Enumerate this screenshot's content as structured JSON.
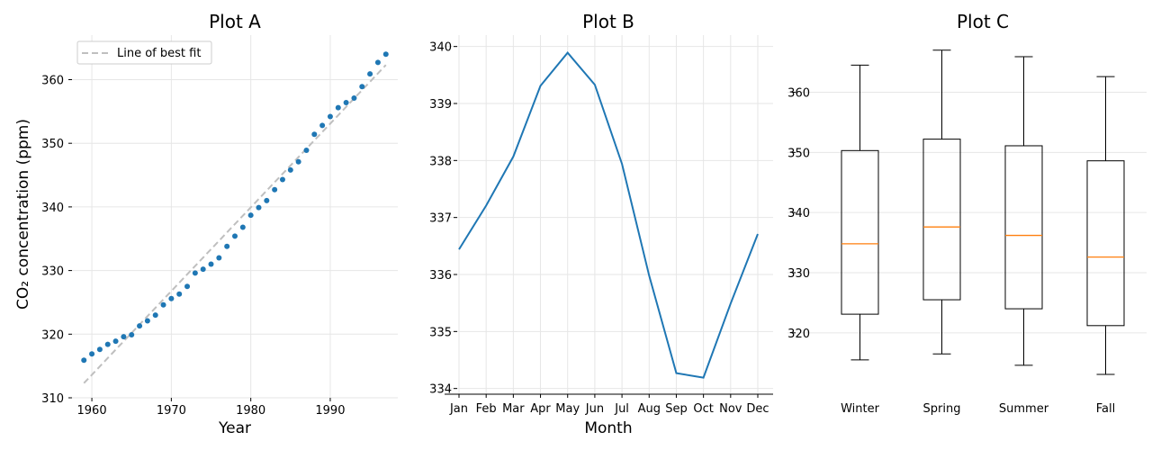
{
  "chart_data": [
    {
      "type": "scatter",
      "title": "Plot A",
      "xlabel": "Year",
      "ylabel": "CO₂ concentration (ppm)",
      "xlim": [
        1957.5,
        1998.5
      ],
      "ylim": [
        310,
        367
      ],
      "xticks": [
        1960,
        1970,
        1980,
        1990
      ],
      "yticks": [
        310,
        320,
        330,
        340,
        350,
        360
      ],
      "grid": true,
      "legend": {
        "position": "top-left",
        "entries": [
          "Line of best fit"
        ]
      },
      "colors": {
        "points": "#1f77b4",
        "fit": "#bfbfbf"
      },
      "x": [
        1959,
        1960,
        1961,
        1962,
        1963,
        1964,
        1965,
        1966,
        1967,
        1968,
        1969,
        1970,
        1971,
        1972,
        1973,
        1974,
        1975,
        1976,
        1977,
        1978,
        1979,
        1980,
        1981,
        1982,
        1983,
        1984,
        1985,
        1986,
        1987,
        1988,
        1989,
        1990,
        1991,
        1992,
        1993,
        1994,
        1995,
        1996,
        1997
      ],
      "y": [
        315.9,
        316.9,
        317.6,
        318.4,
        318.9,
        319.6,
        319.9,
        321.3,
        322.1,
        323.0,
        324.6,
        325.6,
        326.3,
        327.5,
        329.6,
        330.2,
        331.0,
        332.0,
        333.8,
        335.4,
        336.8,
        338.7,
        339.9,
        341.0,
        342.7,
        344.3,
        345.8,
        347.1,
        348.9,
        351.4,
        352.8,
        354.2,
        355.6,
        356.4,
        357.1,
        358.9,
        360.9,
        362.7,
        364.0
      ],
      "fit": {
        "name": "Line of best fit",
        "x": [
          1959,
          1997
        ],
        "y": [
          312.3,
          362.3
        ]
      }
    },
    {
      "type": "line",
      "title": "Plot B",
      "xlabel": "Month",
      "ylabel": "",
      "ylim": [
        333.9,
        340.2
      ],
      "yticks": [
        334,
        335,
        336,
        337,
        338,
        339,
        340
      ],
      "grid": true,
      "colors": {
        "line": "#1f77b4"
      },
      "categories": [
        "Jan",
        "Feb",
        "Mar",
        "Apr",
        "May",
        "Jun",
        "Jul",
        "Aug",
        "Sep",
        "Oct",
        "Nov",
        "Dec"
      ],
      "values": [
        336.44,
        337.21,
        338.07,
        339.31,
        339.89,
        339.33,
        337.94,
        335.98,
        334.27,
        334.19,
        335.49,
        336.71
      ]
    },
    {
      "type": "box",
      "title": "Plot C",
      "xlabel": "",
      "ylabel": "",
      "ylim": [
        309.5,
        369.5
      ],
      "yticks": [
        320,
        330,
        340,
        350,
        360
      ],
      "grid": true,
      "colors": {
        "box": "#000000",
        "median": "#ff7f0e"
      },
      "categories": [
        "Winter",
        "Spring",
        "Summer",
        "Fall"
      ],
      "boxes": [
        {
          "name": "Winter",
          "min": 315.5,
          "q1": 323.1,
          "median": 334.8,
          "q3": 350.3,
          "max": 364.5
        },
        {
          "name": "Spring",
          "min": 316.5,
          "q1": 325.5,
          "median": 337.6,
          "q3": 352.2,
          "max": 367.0
        },
        {
          "name": "Summer",
          "min": 314.6,
          "q1": 324.0,
          "median": 336.2,
          "q3": 351.1,
          "max": 365.9
        },
        {
          "name": "Fall",
          "min": 313.1,
          "q1": 321.2,
          "median": 332.6,
          "q3": 348.6,
          "max": 362.6
        }
      ]
    }
  ]
}
